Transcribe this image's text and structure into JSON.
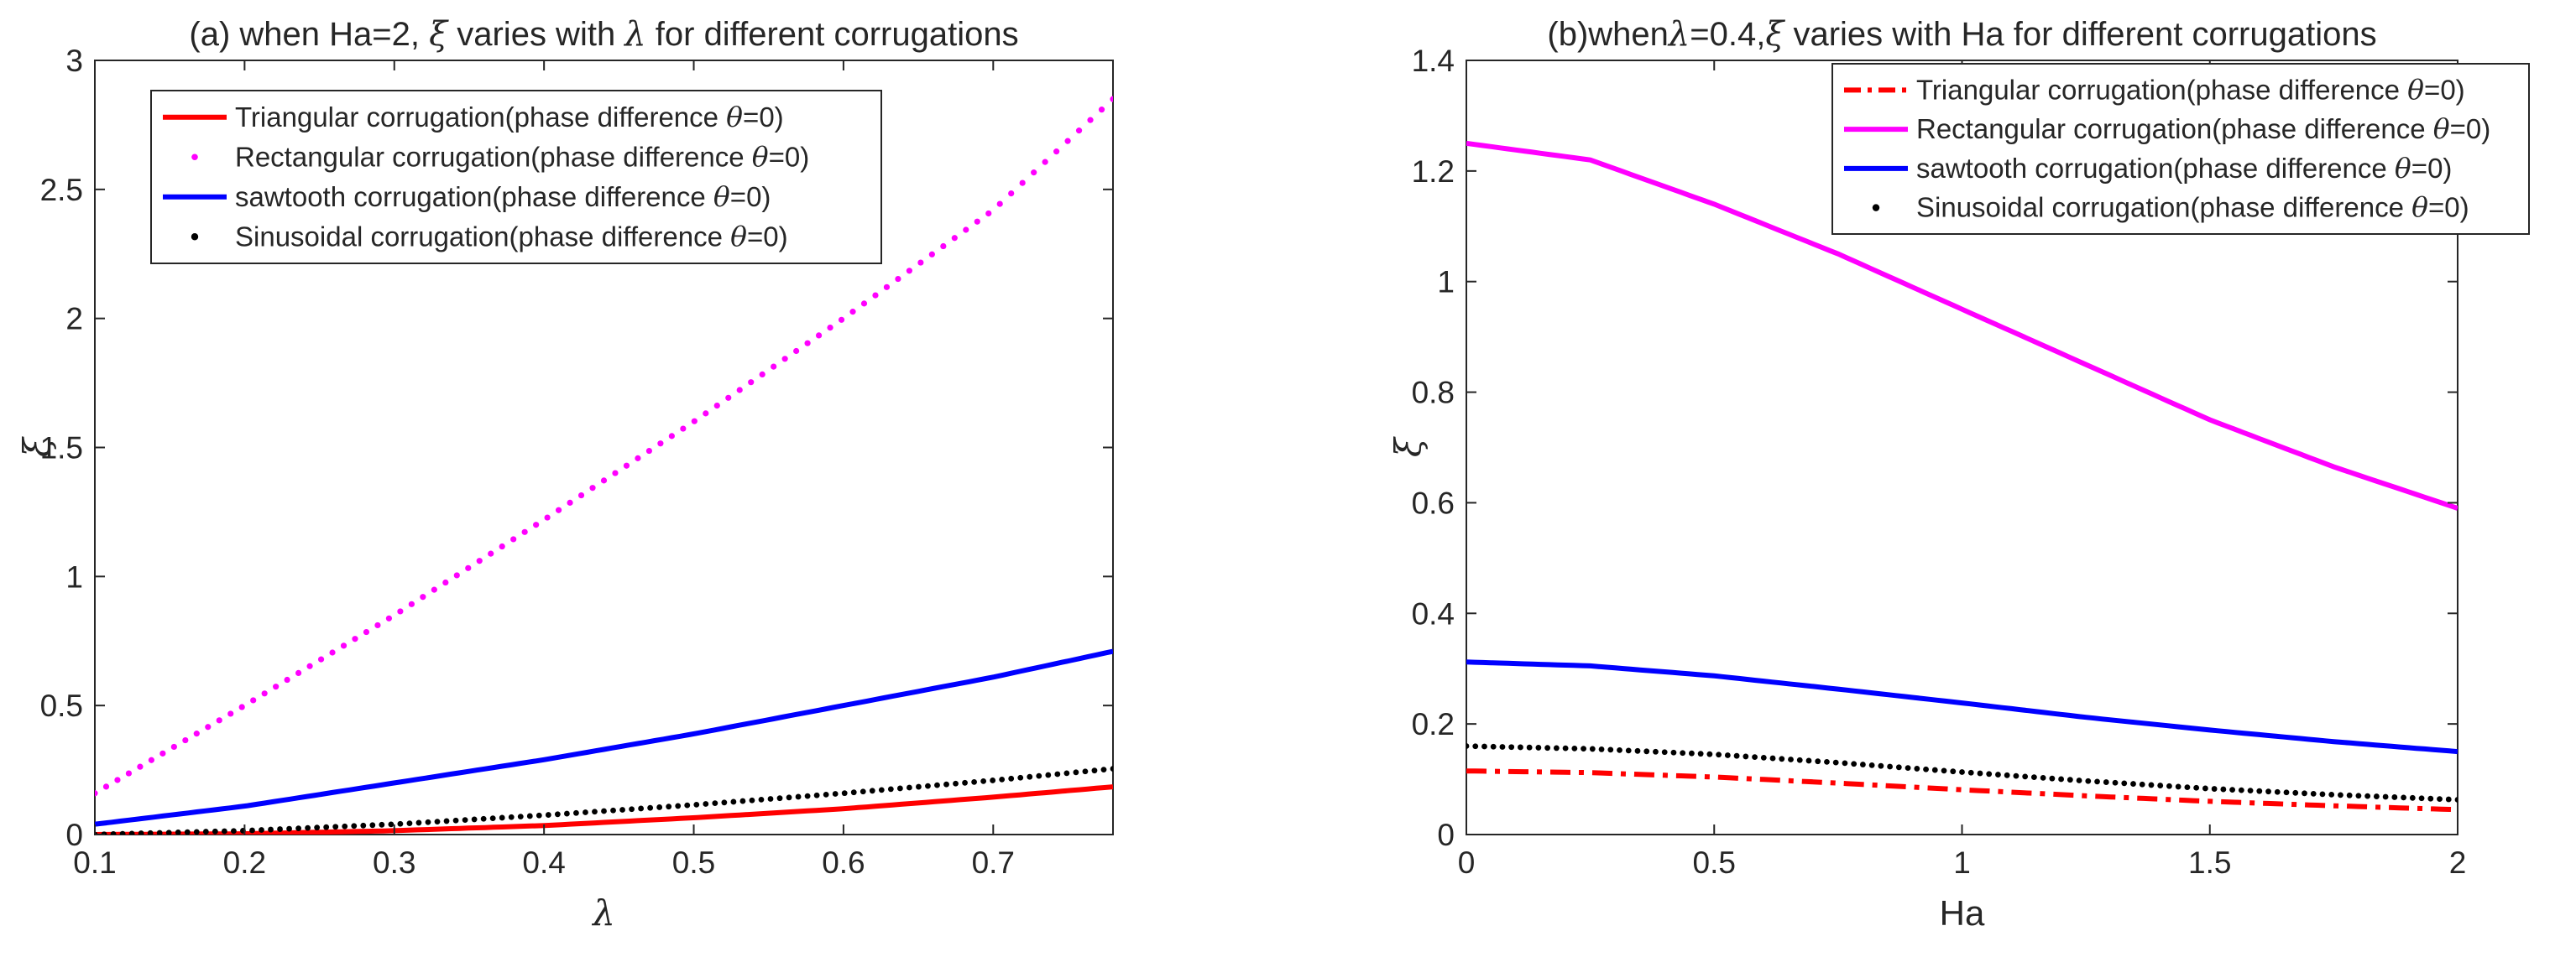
{
  "chart_data": [
    {
      "type": "line",
      "title": "(a) when Ha=2, ξ varies with λ for different corrugations",
      "xlabel": "λ",
      "ylabel": "ξ",
      "xlim": [
        0.1,
        0.78
      ],
      "ylim": [
        0,
        3
      ],
      "xticks": [
        "0.1",
        "0.2",
        "0.3",
        "0.4",
        "0.5",
        "0.6",
        "0.7"
      ],
      "yticks": [
        "0",
        "0.5",
        "1",
        "1.5",
        "2",
        "2.5",
        "3"
      ],
      "grid": false,
      "legend_position": "top-left",
      "x": [
        0.1,
        0.2,
        0.3,
        0.4,
        0.5,
        0.6,
        0.7,
        0.78
      ],
      "series": [
        {
          "name": "Triangular corrugation(phase difference θ=0)",
          "color": "#ff0000",
          "style": "solid",
          "values": [
            0.0,
            0.003,
            0.015,
            0.035,
            0.065,
            0.1,
            0.145,
            0.185
          ]
        },
        {
          "name": "Rectangular corrugation(phase difference θ=0)",
          "color": "#ff00ff",
          "style": "dotted",
          "values": [
            0.16,
            0.5,
            0.85,
            1.22,
            1.6,
            2.0,
            2.42,
            2.85
          ]
        },
        {
          "name": "sawtooth corrugation(phase difference θ=0)",
          "color": "#0000ff",
          "style": "solid",
          "values": [
            0.04,
            0.11,
            0.2,
            0.29,
            0.39,
            0.5,
            0.61,
            0.71
          ]
        },
        {
          "name": "Sinusoidal corrugation(phase difference θ=0)",
          "color": "#000000",
          "style": "dots",
          "values": [
            0.0,
            0.015,
            0.04,
            0.075,
            0.115,
            0.16,
            0.21,
            0.255
          ]
        }
      ]
    },
    {
      "type": "line",
      "title": "(b)whenλ=0.4,ξ varies with Ha for different corrugations",
      "xlabel": "Ha",
      "ylabel": "ξ",
      "xlim": [
        0,
        2
      ],
      "ylim": [
        0,
        1.4
      ],
      "xticks": [
        "0",
        "0.5",
        "1",
        "1.5",
        "2"
      ],
      "yticks": [
        "0",
        "0.2",
        "0.4",
        "0.6",
        "0.8",
        "1",
        "1.2",
        "1.4"
      ],
      "grid": false,
      "legend_position": "top-right",
      "x": [
        0,
        0.25,
        0.5,
        0.75,
        1.0,
        1.25,
        1.5,
        1.75,
        2.0
      ],
      "series": [
        {
          "name": "Triangular corrugation(phase difference θ=0)",
          "color": "#ff0000",
          "style": "dashdot",
          "values": [
            0.115,
            0.112,
            0.104,
            0.093,
            0.081,
            0.07,
            0.06,
            0.052,
            0.045
          ]
        },
        {
          "name": "Rectangular corrugation(phase difference θ=0)",
          "color": "#ff00ff",
          "style": "solid",
          "values": [
            1.25,
            1.22,
            1.14,
            1.05,
            0.95,
            0.85,
            0.75,
            0.665,
            0.59
          ]
        },
        {
          "name": "sawtooth corrugation(phase difference θ=0)",
          "color": "#0000ff",
          "style": "solid",
          "values": [
            0.312,
            0.305,
            0.287,
            0.263,
            0.238,
            0.212,
            0.189,
            0.168,
            0.15
          ]
        },
        {
          "name": "Sinusoidal corrugation(phase difference θ=0)",
          "color": "#000000",
          "style": "dots",
          "values": [
            0.16,
            0.155,
            0.145,
            0.13,
            0.113,
            0.097,
            0.083,
            0.072,
            0.063
          ]
        }
      ]
    }
  ]
}
